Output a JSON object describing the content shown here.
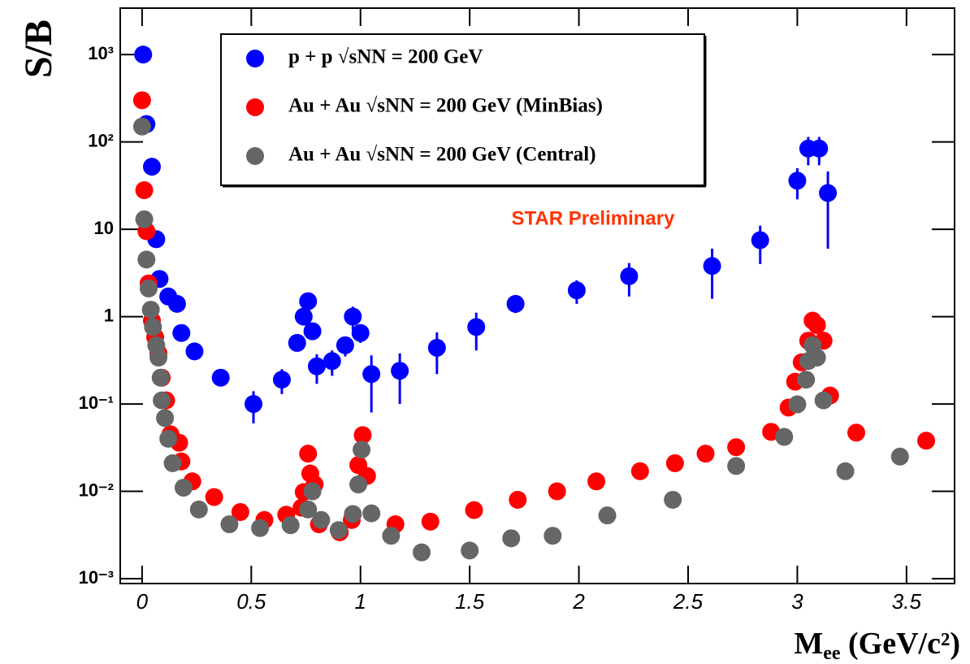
{
  "chart_data": {
    "type": "scatter",
    "y_label": "S/B",
    "x_label_parts": [
      "M",
      "ee",
      " (GeV/c²)"
    ],
    "annotation": "STAR Preliminary",
    "annotation_color": "#ff3300",
    "log_y": true,
    "xlim": [
      -0.1,
      3.72
    ],
    "ylim": [
      0.00088,
      3400
    ],
    "xticks": [
      0,
      0.5,
      1,
      1.5,
      2,
      2.5,
      3,
      3.5
    ],
    "yticks": [
      {
        "value": 1000,
        "label": "10³"
      },
      {
        "value": 100,
        "label": "10²"
      },
      10,
      1,
      {
        "value": 0.1,
        "label": "10⁻¹"
      },
      {
        "value": 0.01,
        "label": "10⁻²"
      },
      {
        "value": 0.001,
        "label": "10⁻³"
      }
    ],
    "legend": "top-left",
    "series": [
      {
        "name": "p + p √sNN = 200 GeV",
        "color": "#0000ff",
        "x": [
          0.005,
          0.02,
          0.045,
          0.065,
          0.08,
          0.12,
          0.16,
          0.18,
          0.24,
          0.36,
          0.51,
          0.64,
          0.71,
          0.74,
          0.76,
          0.78,
          0.8,
          0.87,
          0.93,
          0.965,
          1.0,
          1.05,
          1.18,
          1.35,
          1.53,
          1.71,
          1.99,
          2.23,
          2.61,
          2.83,
          3.0,
          3.05,
          3.1,
          3.14
        ],
        "y": [
          1000,
          160,
          52,
          7.7,
          2.7,
          1.7,
          1.4,
          0.65,
          0.4,
          0.2,
          0.1,
          0.19,
          0.5,
          1.0,
          1.5,
          0.68,
          0.27,
          0.31,
          0.47,
          1.0,
          0.65,
          0.22,
          0.24,
          0.44,
          0.76,
          1.4,
          2.0,
          2.9,
          3.8,
          7.5,
          36,
          84,
          84,
          26
        ],
        "errors": [
          0,
          0,
          0,
          0,
          0,
          0,
          0,
          0,
          0,
          0,
          0.04,
          0.06,
          0,
          0,
          0,
          0,
          0.1,
          0.1,
          0.12,
          0.3,
          0.15,
          0.14,
          0.14,
          0.22,
          0.35,
          0.3,
          0.6,
          1.2,
          2.2,
          3.5,
          14,
          30,
          30,
          20
        ]
      },
      {
        "name": "Au + Au √sNN = 200 GeV  (MinBias)",
        "color": "#ff0000",
        "x": [
          0,
          0.01,
          0.02,
          0.03,
          0.045,
          0.06,
          0.075,
          0.09,
          0.11,
          0.13,
          0.17,
          0.18,
          0.23,
          0.33,
          0.45,
          0.56,
          0.66,
          0.73,
          0.74,
          0.76,
          0.77,
          0.79,
          0.81,
          0.905,
          0.96,
          0.99,
          1.01,
          1.03,
          1.16,
          1.32,
          1.52,
          1.72,
          1.9,
          2.08,
          2.28,
          2.44,
          2.58,
          2.72,
          2.88,
          2.96,
          2.99,
          3.02,
          3.05,
          3.07,
          3.09,
          3.12,
          3.15,
          3.27,
          3.59
        ],
        "y": [
          300,
          28,
          9.5,
          2.4,
          0.9,
          0.58,
          0.38,
          0.2,
          0.11,
          0.045,
          0.036,
          0.022,
          0.013,
          0.0086,
          0.0058,
          0.0047,
          0.0054,
          0.0065,
          0.0098,
          0.027,
          0.016,
          0.012,
          0.0042,
          0.0034,
          0.0047,
          0.02,
          0.044,
          0.015,
          0.0042,
          0.0045,
          0.0061,
          0.008,
          0.01,
          0.013,
          0.017,
          0.021,
          0.027,
          0.032,
          0.048,
          0.091,
          0.18,
          0.3,
          0.53,
          0.9,
          0.8,
          0.53,
          0.125,
          0.047,
          0.038
        ]
      },
      {
        "name": "Au + Au √sNN = 200 GeV  (Central)",
        "color": "#666666",
        "x": [
          0,
          0.01,
          0.02,
          0.03,
          0.04,
          0.05,
          0.065,
          0.075,
          0.085,
          0.09,
          0.105,
          0.12,
          0.14,
          0.19,
          0.26,
          0.4,
          0.54,
          0.68,
          0.76,
          0.78,
          0.82,
          0.9,
          0.965,
          0.99,
          1.005,
          1.05,
          1.14,
          1.28,
          1.5,
          1.69,
          1.88,
          2.13,
          2.43,
          2.72,
          2.94,
          3.0,
          3.04,
          3.05,
          3.07,
          3.09,
          3.12,
          3.22,
          3.47
        ],
        "y": [
          150,
          13,
          4.5,
          2.1,
          1.2,
          0.76,
          0.47,
          0.34,
          0.2,
          0.11,
          0.069,
          0.04,
          0.021,
          0.011,
          0.0062,
          0.0042,
          0.0038,
          0.0041,
          0.0062,
          0.01,
          0.0047,
          0.0036,
          0.0055,
          0.012,
          0.03,
          0.0056,
          0.0031,
          0.002,
          0.0021,
          0.0029,
          0.0031,
          0.0053,
          0.008,
          0.0195,
          0.042,
          0.099,
          0.19,
          0.31,
          0.47,
          0.34,
          0.11,
          0.017,
          0.025
        ]
      }
    ]
  }
}
